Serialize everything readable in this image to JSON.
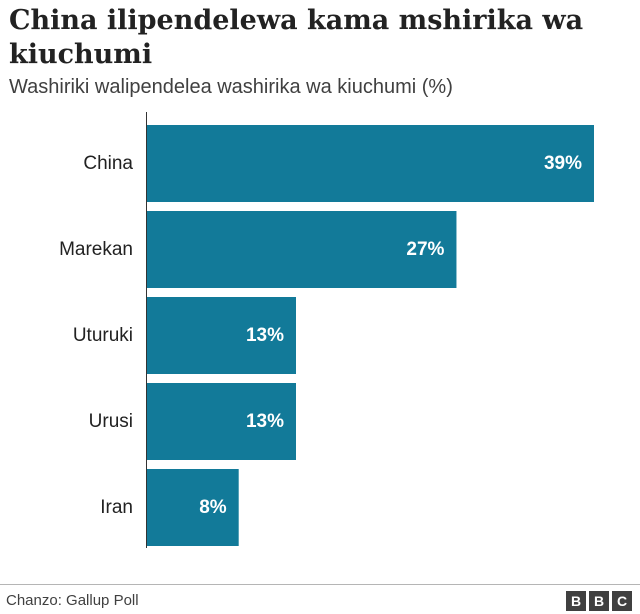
{
  "chart_data": {
    "type": "bar",
    "orientation": "horizontal",
    "title": "China ilipendelewa kama mshirika wa kiuchumi",
    "subtitle": "Washiriki walipendelea washirika wa kiuchumi (%)",
    "categories": [
      "China",
      "Marekan",
      "Uturuki",
      "Urusi",
      "Iran"
    ],
    "values": [
      39,
      27,
      13,
      13,
      8
    ],
    "value_labels": [
      "39%",
      "27%",
      "13%",
      "13%",
      "8%"
    ],
    "xlim": [
      0,
      39
    ],
    "xlabel": "",
    "ylabel": "",
    "grid": false,
    "bar_color": "#127a99",
    "label_color": "#ffffff"
  },
  "footer": {
    "source": "Chanzo: Gallup Poll",
    "logo_letters": [
      "B",
      "B",
      "C"
    ]
  }
}
